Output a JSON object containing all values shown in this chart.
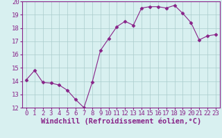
{
  "x": [
    0,
    1,
    2,
    3,
    4,
    5,
    6,
    7,
    8,
    9,
    10,
    11,
    12,
    13,
    14,
    15,
    16,
    17,
    18,
    19,
    20,
    21,
    22,
    23
  ],
  "y": [
    14.1,
    14.8,
    13.9,
    13.85,
    13.7,
    13.3,
    12.6,
    12.0,
    13.9,
    16.3,
    17.2,
    18.1,
    18.5,
    18.2,
    19.5,
    19.6,
    19.6,
    19.5,
    19.7,
    19.1,
    18.4,
    17.1,
    17.4,
    17.5
  ],
  "line_color": "#882288",
  "marker": "D",
  "marker_size": 2.5,
  "bg_color": "#d8f0f0",
  "grid_color": "#aacccc",
  "xlabel": "Windchill (Refroidissement éolien,°C)",
  "ylim": [
    12,
    20
  ],
  "xlim": [
    -0.5,
    23.5
  ],
  "yticks": [
    12,
    13,
    14,
    15,
    16,
    17,
    18,
    19,
    20
  ],
  "xticks": [
    0,
    1,
    2,
    3,
    4,
    5,
    6,
    7,
    8,
    9,
    10,
    11,
    12,
    13,
    14,
    15,
    16,
    17,
    18,
    19,
    20,
    21,
    22,
    23
  ],
  "tick_fontsize": 6.5,
  "xlabel_fontsize": 7.5
}
